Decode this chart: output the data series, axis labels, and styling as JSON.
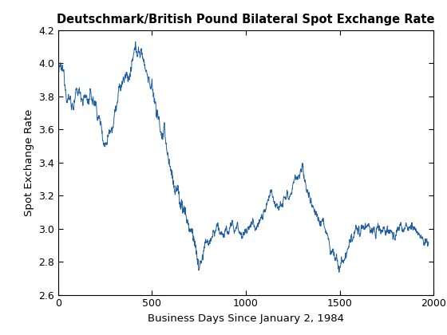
{
  "title": "Deutschmark/British Pound Bilateral Spot Exchange Rate",
  "xlabel": "Business Days Since January 2, 1984",
  "ylabel": "Spot Exchange Rate",
  "xlim": [
    0,
    2000
  ],
  "ylim": [
    2.6,
    4.2
  ],
  "line_color": "#2060a0",
  "line_width": 0.7,
  "xticks": [
    0,
    500,
    1000,
    1500,
    2000
  ],
  "yticks": [
    2.6,
    2.8,
    3.0,
    3.2,
    3.4,
    3.6,
    3.8,
    4.0,
    4.2
  ],
  "background_color": "#ffffff",
  "title_fontsize": 10.5,
  "label_fontsize": 9.5,
  "tick_fontsize": 9,
  "waypoints_x": [
    0,
    30,
    80,
    130,
    200,
    250,
    280,
    340,
    380,
    430,
    460,
    490,
    520,
    560,
    600,
    640,
    680,
    720,
    750,
    790,
    850,
    920,
    970,
    1020,
    1060,
    1100,
    1150,
    1200,
    1250,
    1290,
    1320,
    1370,
    1410,
    1450,
    1480,
    1500,
    1540,
    1580,
    1620,
    1680,
    1730,
    1800,
    1860,
    1920,
    1974
  ],
  "waypoints_y": [
    3.97,
    3.88,
    3.78,
    3.82,
    3.75,
    3.54,
    3.68,
    3.87,
    3.92,
    4.06,
    4.02,
    3.9,
    3.75,
    3.55,
    3.35,
    3.2,
    3.1,
    2.95,
    2.77,
    2.88,
    2.97,
    2.99,
    3.01,
    3.0,
    3.08,
    3.13,
    3.18,
    3.24,
    3.3,
    3.28,
    3.22,
    3.1,
    3.05,
    2.88,
    2.82,
    2.77,
    2.85,
    2.93,
    2.97,
    2.96,
    3.0,
    2.97,
    3.0,
    2.93,
    2.87
  ]
}
